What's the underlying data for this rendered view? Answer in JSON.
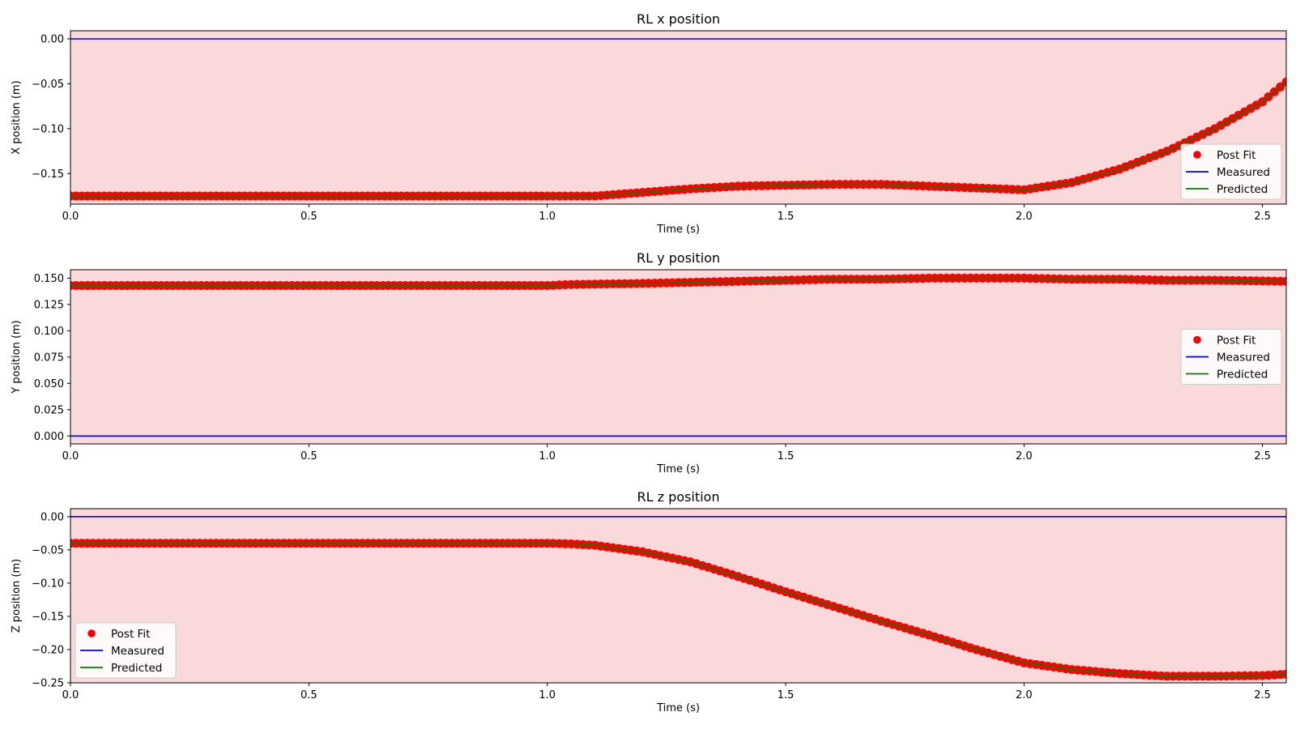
{
  "colors": {
    "plot_background": "#f9d9d9",
    "post_fit": "#ff0000",
    "measured": "#0000ff",
    "predicted": "#008000"
  },
  "legend_labels": [
    "Post Fit",
    "Measured",
    "Predicted"
  ],
  "chart_data": [
    {
      "type": "line",
      "title": "RL x position",
      "xlabel": "Time (s)",
      "ylabel": "X position (m)",
      "xlim": [
        0,
        2.55
      ],
      "ylim": [
        -0.184,
        0.009
      ],
      "xticks": [
        0,
        0.5,
        1.0,
        1.5,
        2.0,
        2.5
      ],
      "xtick_labels": [
        "0.0",
        "0.5",
        "1.0",
        "1.5",
        "2.0",
        "2.5"
      ],
      "yticks": [
        0.0,
        -0.05,
        -0.1,
        -0.15
      ],
      "ytick_labels": [
        "0.00",
        "−0.05",
        "−0.10",
        "−0.15"
      ],
      "legend_position": "lower-right",
      "series": [
        {
          "name": "Post Fit",
          "style": "markers",
          "color": "#ff0000",
          "x": [
            0,
            0.2,
            0.4,
            0.6,
            0.8,
            1.0,
            1.1,
            1.2,
            1.3,
            1.4,
            1.5,
            1.6,
            1.7,
            1.8,
            1.9,
            2.0,
            2.1,
            2.2,
            2.3,
            2.4,
            2.5,
            2.55
          ],
          "y": [
            -0.175,
            -0.175,
            -0.175,
            -0.175,
            -0.175,
            -0.175,
            -0.175,
            -0.171,
            -0.167,
            -0.164,
            -0.163,
            -0.162,
            -0.162,
            -0.164,
            -0.166,
            -0.168,
            -0.16,
            -0.145,
            -0.125,
            -0.1,
            -0.07,
            -0.048
          ]
        },
        {
          "name": "Measured",
          "style": "line",
          "color": "#0000ff",
          "x": [
            0,
            2.55
          ],
          "y": [
            0.0,
            0.0
          ]
        },
        {
          "name": "Predicted",
          "style": "line",
          "color": "#008000",
          "x": [
            0,
            0.2,
            0.4,
            0.6,
            0.8,
            1.0,
            1.1,
            1.2,
            1.3,
            1.4,
            1.5,
            1.6,
            1.7,
            1.8,
            1.9,
            2.0,
            2.1,
            2.2,
            2.3,
            2.4,
            2.5,
            2.55
          ],
          "y": [
            -0.175,
            -0.175,
            -0.175,
            -0.175,
            -0.175,
            -0.175,
            -0.175,
            -0.171,
            -0.167,
            -0.164,
            -0.163,
            -0.162,
            -0.162,
            -0.164,
            -0.166,
            -0.168,
            -0.16,
            -0.145,
            -0.125,
            -0.1,
            -0.07,
            -0.048
          ]
        }
      ]
    },
    {
      "type": "line",
      "title": "RL y position",
      "xlabel": "Time (s)",
      "ylabel": "Y position (m)",
      "xlim": [
        0,
        2.55
      ],
      "ylim": [
        -0.0075,
        0.158
      ],
      "xticks": [
        0,
        0.5,
        1.0,
        1.5,
        2.0,
        2.5
      ],
      "xtick_labels": [
        "0.0",
        "0.5",
        "1.0",
        "1.5",
        "2.0",
        "2.5"
      ],
      "yticks": [
        0.0,
        0.025,
        0.05,
        0.075,
        0.1,
        0.125,
        0.15
      ],
      "ytick_labels": [
        "0.000",
        "0.025",
        "0.050",
        "0.075",
        "0.100",
        "0.125",
        "0.150"
      ],
      "legend_position": "center-right",
      "series": [
        {
          "name": "Post Fit",
          "style": "markers",
          "color": "#ff0000",
          "x": [
            0,
            0.5,
            1.0,
            1.05,
            1.2,
            1.3,
            1.4,
            1.5,
            1.6,
            1.7,
            1.8,
            1.9,
            2.0,
            2.1,
            2.2,
            2.3,
            2.4,
            2.55
          ],
          "y": [
            0.143,
            0.143,
            0.143,
            0.144,
            0.145,
            0.146,
            0.147,
            0.148,
            0.149,
            0.149,
            0.15,
            0.15,
            0.15,
            0.149,
            0.149,
            0.148,
            0.148,
            0.147
          ]
        },
        {
          "name": "Measured",
          "style": "line",
          "color": "#0000ff",
          "x": [
            0,
            2.55
          ],
          "y": [
            0.0,
            0.0
          ]
        },
        {
          "name": "Predicted",
          "style": "line",
          "color": "#008000",
          "x": [
            0,
            0.5,
            1.0,
            1.05,
            1.2,
            1.3,
            1.4,
            1.5,
            1.6,
            1.7,
            1.8,
            1.9,
            2.0,
            2.1,
            2.2,
            2.3,
            2.4,
            2.55
          ],
          "y": [
            0.143,
            0.143,
            0.143,
            0.144,
            0.145,
            0.146,
            0.147,
            0.148,
            0.149,
            0.149,
            0.15,
            0.15,
            0.15,
            0.149,
            0.149,
            0.148,
            0.148,
            0.147
          ]
        }
      ]
    },
    {
      "type": "line",
      "title": "RL z position",
      "xlabel": "Time (s)",
      "ylabel": "Z position (m)",
      "xlim": [
        0,
        2.55
      ],
      "ylim": [
        -0.25,
        0.012
      ],
      "xticks": [
        0,
        0.5,
        1.0,
        1.5,
        2.0,
        2.5
      ],
      "xtick_labels": [
        "0.0",
        "0.5",
        "1.0",
        "1.5",
        "2.0",
        "2.5"
      ],
      "yticks": [
        0.0,
        -0.05,
        -0.1,
        -0.15,
        -0.2,
        -0.25
      ],
      "ytick_labels": [
        "0.00",
        "−0.05",
        "−0.10",
        "−0.15",
        "−0.20",
        "−0.25"
      ],
      "legend_position": "lower-left",
      "series": [
        {
          "name": "Post Fit",
          "style": "markers",
          "color": "#ff0000",
          "x": [
            0,
            0.2,
            0.4,
            0.6,
            0.8,
            1.0,
            1.05,
            1.1,
            1.2,
            1.3,
            1.4,
            1.5,
            1.6,
            1.7,
            1.8,
            1.9,
            2.0,
            2.1,
            2.2,
            2.3,
            2.4,
            2.5,
            2.55
          ],
          "y": [
            -0.04,
            -0.04,
            -0.04,
            -0.04,
            -0.04,
            -0.04,
            -0.041,
            -0.043,
            -0.053,
            -0.068,
            -0.09,
            -0.113,
            -0.135,
            -0.157,
            -0.178,
            -0.2,
            -0.22,
            -0.23,
            -0.236,
            -0.24,
            -0.24,
            -0.239,
            -0.237
          ]
        },
        {
          "name": "Measured",
          "style": "line",
          "color": "#0000ff",
          "x": [
            0,
            2.55
          ],
          "y": [
            0.0,
            0.0
          ]
        },
        {
          "name": "Predicted",
          "style": "line",
          "color": "#008000",
          "x": [
            0,
            0.2,
            0.4,
            0.6,
            0.8,
            1.0,
            1.05,
            1.1,
            1.2,
            1.3,
            1.4,
            1.5,
            1.6,
            1.7,
            1.8,
            1.9,
            2.0,
            2.1,
            2.2,
            2.3,
            2.4,
            2.5,
            2.55
          ],
          "y": [
            -0.04,
            -0.04,
            -0.04,
            -0.04,
            -0.04,
            -0.04,
            -0.041,
            -0.043,
            -0.053,
            -0.068,
            -0.09,
            -0.113,
            -0.135,
            -0.157,
            -0.178,
            -0.2,
            -0.22,
            -0.23,
            -0.236,
            -0.24,
            -0.24,
            -0.239,
            -0.237
          ]
        }
      ]
    }
  ]
}
